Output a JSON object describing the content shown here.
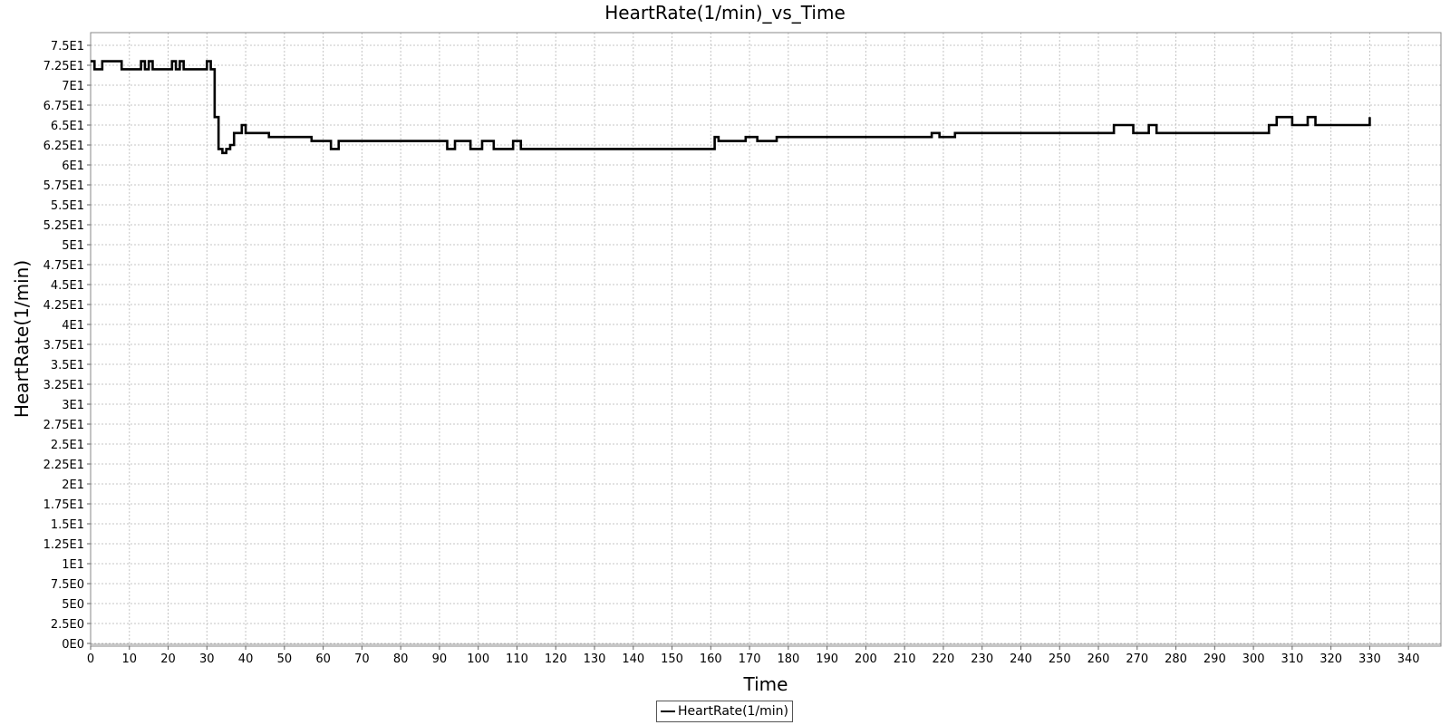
{
  "chart_data": {
    "type": "line",
    "title": "HeartRate(1/min)_vs_Time",
    "xlabel": "Time",
    "ylabel": "HeartRate(1/min)",
    "xlim": [
      0,
      347
    ],
    "ylim": [
      0,
      76.5
    ],
    "x_ticks": [
      0,
      10,
      20,
      30,
      40,
      50,
      60,
      70,
      80,
      90,
      100,
      110,
      120,
      130,
      140,
      150,
      160,
      170,
      180,
      190,
      200,
      210,
      220,
      230,
      240,
      250,
      260,
      270,
      280,
      290,
      300,
      310,
      320,
      330,
      340
    ],
    "x_tick_labels": [
      "0",
      "10",
      "20",
      "30",
      "40",
      "50",
      "60",
      "70",
      "80",
      "90",
      "100",
      "110",
      "120",
      "130",
      "140",
      "150",
      "160",
      "170",
      "180",
      "190",
      "200",
      "210",
      "220",
      "230",
      "240",
      "250",
      "260",
      "270",
      "280",
      "290",
      "300",
      "310",
      "320",
      "330",
      "340"
    ],
    "y_ticks": [
      0,
      2.5,
      5,
      7.5,
      10,
      12.5,
      15,
      17.5,
      20,
      22.5,
      25,
      27.5,
      30,
      32.5,
      35,
      37.5,
      40,
      42.5,
      45,
      47.5,
      50,
      52.5,
      55,
      57.5,
      60,
      62.5,
      65,
      67.5,
      70,
      72.5,
      75
    ],
    "y_tick_labels": [
      "0E0",
      "2.5E0",
      "5E0",
      "7.5E0",
      "1E1",
      "1.25E1",
      "1.5E1",
      "1.75E1",
      "2E1",
      "2.25E1",
      "2.5E1",
      "2.75E1",
      "3E1",
      "3.25E1",
      "3.5E1",
      "3.75E1",
      "4E1",
      "4.25E1",
      "4.5E1",
      "4.75E1",
      "5E1",
      "5.25E1",
      "5.5E1",
      "5.75E1",
      "6E1",
      "6.25E1",
      "6.5E1",
      "6.75E1",
      "7E1",
      "7.25E1",
      "7.5E1"
    ],
    "grid": true,
    "legend_position": "bottom-center",
    "series": [
      {
        "name": "HeartRate(1/min)",
        "color": "#000000",
        "step": true,
        "x": [
          0,
          1,
          3,
          6,
          8,
          13,
          14,
          15,
          16,
          21,
          22,
          23,
          24,
          30,
          31,
          32,
          33,
          34,
          35,
          36,
          37,
          38,
          39,
          40,
          42,
          46,
          57,
          62,
          64,
          92,
          94,
          98,
          101,
          104,
          109,
          111,
          161,
          162,
          166,
          169,
          172,
          177,
          179,
          217,
          219,
          223,
          227,
          230,
          262,
          264,
          269,
          273,
          275,
          304,
          306,
          310,
          314,
          316,
          330
        ],
        "y": [
          73,
          72,
          73,
          73,
          72,
          73,
          72,
          73,
          72,
          73,
          72,
          73,
          72,
          73,
          72,
          66,
          62,
          61.5,
          62,
          62.5,
          64,
          64,
          65,
          64,
          64,
          63.5,
          63,
          62,
          63,
          62,
          63,
          62,
          63,
          62,
          63,
          62,
          63.5,
          63,
          63,
          63.5,
          63,
          63.5,
          63.5,
          64,
          63.5,
          64,
          64,
          64,
          64,
          65,
          64,
          65,
          64,
          65,
          66,
          65,
          66,
          65,
          66
        ]
      }
    ]
  }
}
